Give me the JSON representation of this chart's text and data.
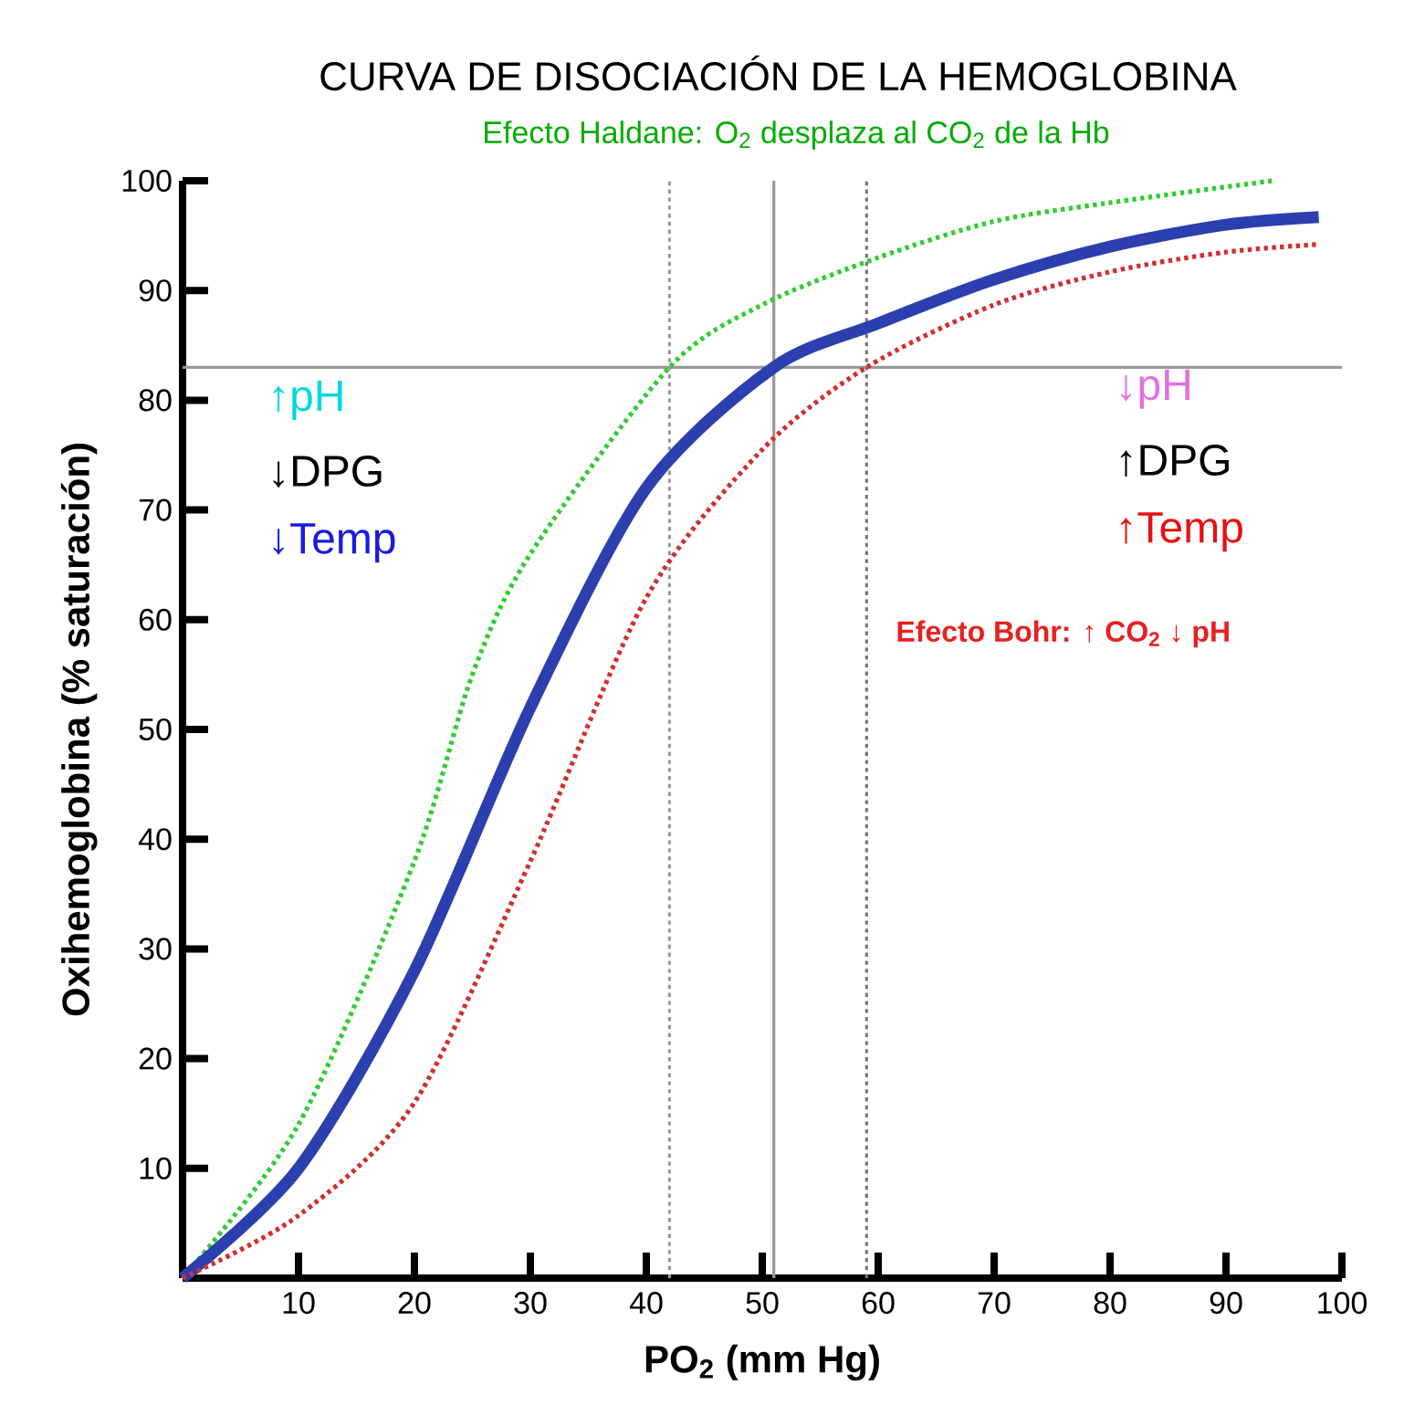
{
  "chart_data": {
    "type": "line",
    "title": "CURVA DE DISOCIACIÓN DE LA HEMOGLOBINA",
    "subtitle": "Efecto Haldane: O$_{2}$ desplaza al CO$_{2}$ de la Hb",
    "xlabel": "PO$_{2}$ (mm Hg)",
    "ylabel": "Oxihemoglobina (% saturación)",
    "xlim": [
      0,
      100
    ],
    "ylim": [
      0,
      100
    ],
    "xticks": [
      10,
      20,
      30,
      40,
      50,
      60,
      70,
      80,
      90,
      100
    ],
    "yticks": [
      10,
      20,
      30,
      40,
      50,
      60,
      70,
      80,
      90,
      100
    ],
    "grid": false,
    "marker": "none",
    "series": [
      {
        "color": "#33cc33",
        "line_style": "dotted",
        "x": [
          0,
          10,
          20,
          25,
          30,
          42,
          50,
          60,
          70,
          80,
          94
        ],
        "values": [
          0,
          14,
          38,
          55,
          66,
          83,
          88.7,
          93,
          96.3,
          98,
          100
        ]
      },
      {
        "color": "#2b3fae",
        "line_style": "solid",
        "x": [
          0,
          10,
          20,
          30,
          40,
          51,
          60,
          70,
          80,
          90,
          98
        ],
        "values": [
          0,
          10,
          28,
          52,
          72,
          83,
          87,
          91,
          94,
          96,
          96.7
        ]
      },
      {
        "color": "#d03030",
        "line_style": "dotted",
        "x": [
          0,
          10,
          20,
          30,
          40,
          50,
          59,
          70,
          80,
          90,
          98
        ],
        "values": [
          0,
          5.7,
          16,
          38,
          62,
          75.5,
          83,
          88.7,
          91.7,
          93.5,
          94.2
        ]
      }
    ],
    "ref_lines": [
      {
        "axis": "y",
        "value": 83,
        "color": "#999999",
        "line_style": "solid"
      },
      {
        "axis": "x",
        "value": 42,
        "color": "#999999",
        "line_style": "dotted"
      },
      {
        "axis": "x",
        "value": 51,
        "color": "#999999",
        "line_style": "solid"
      },
      {
        "axis": "x",
        "value": 59,
        "color": "#777777",
        "line_style": "dotted"
      }
    ],
    "annotations": [
      "↑pH",
      "↓DPG",
      "↓Temp",
      "↓pH",
      "↑DPG",
      "↑Temp",
      "Efecto Bohr: ↑ CO$_{2}$ ↓ pH"
    ]
  }
}
